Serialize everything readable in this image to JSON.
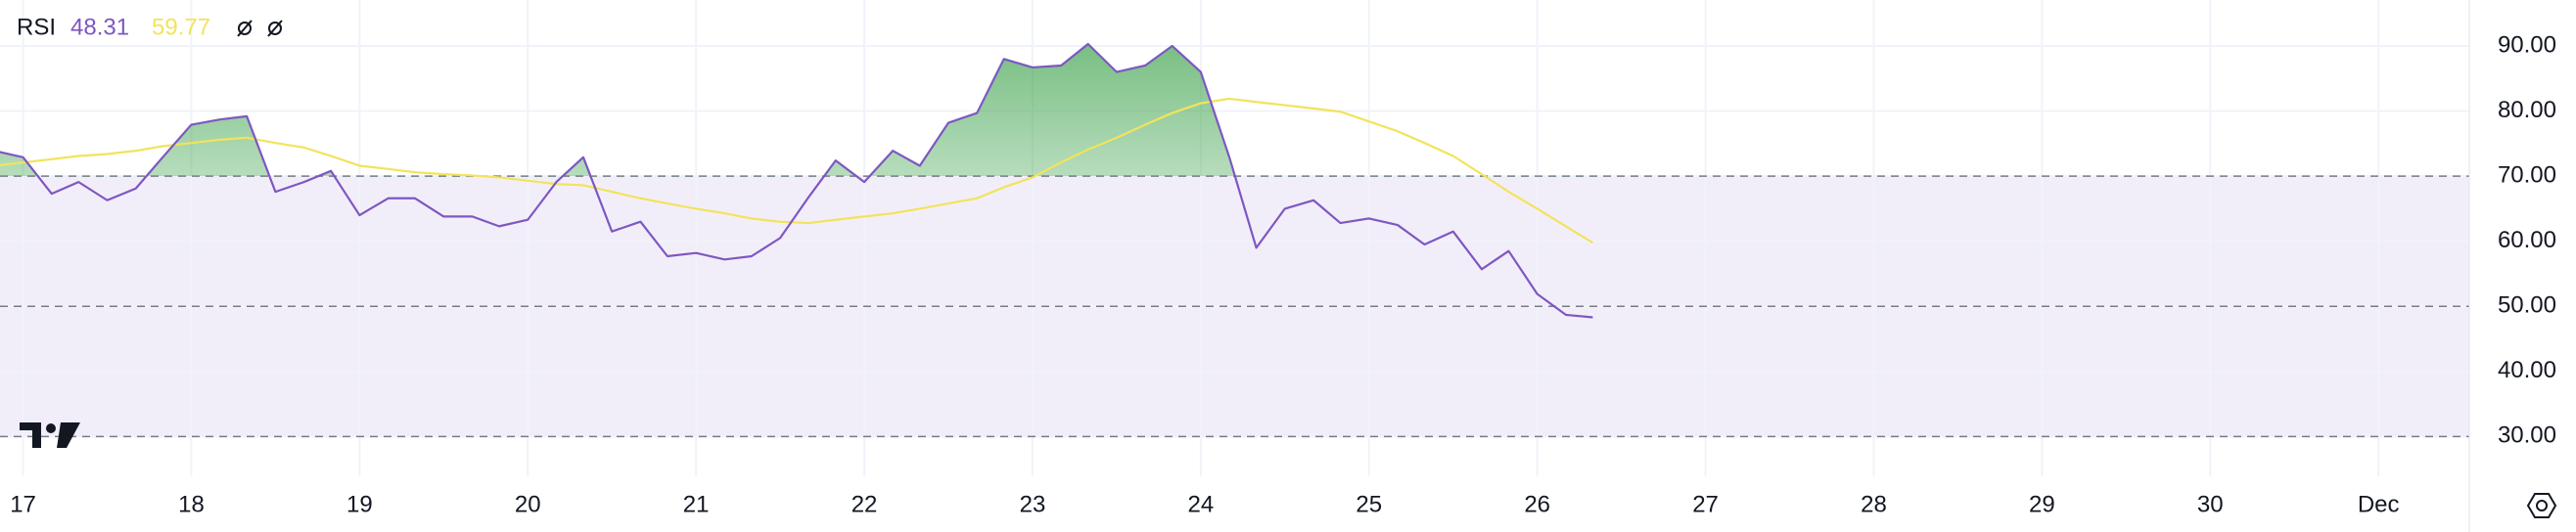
{
  "chart_data": {
    "type": "line",
    "title": "RSI",
    "x": [
      16.83,
      17,
      17.17,
      17.33,
      17.5,
      17.67,
      17.83,
      18,
      18.17,
      18.33,
      18.5,
      18.67,
      18.83,
      19,
      19.17,
      19.33,
      19.5,
      19.67,
      19.83,
      20,
      20.17,
      20.33,
      20.5,
      20.67,
      20.83,
      21,
      21.17,
      21.33,
      21.5,
      21.67,
      21.83,
      22,
      22.17,
      22.33,
      22.5,
      22.67,
      22.83,
      23,
      23.17,
      23.33,
      23.5,
      23.67,
      23.83,
      24,
      24.17,
      24.33,
      24.5,
      24.67,
      24.83,
      25,
      25.17,
      25.33,
      25.5,
      25.67,
      25.83,
      26,
      26.17,
      26.33
    ],
    "series": [
      {
        "color": "#7e57c2",
        "values": [
          73.9,
          72.9,
          67.3,
          69.1,
          66.3,
          68.1,
          72.9,
          77.9,
          78.7,
          79.2,
          67.6,
          69.1,
          70.8,
          64.0,
          66.6,
          66.6,
          63.8,
          63.8,
          62.3,
          63.3,
          69.1,
          72.9,
          61.5,
          63.0,
          57.7,
          58.2,
          57.2,
          57.7,
          60.5,
          66.8,
          72.4,
          69.1,
          73.9,
          71.6,
          78.2,
          79.7,
          88.0,
          86.7,
          87.0,
          90.3,
          86.0,
          87.0,
          90.0,
          86.0,
          72.9,
          59.0,
          65.0,
          66.3,
          62.8,
          63.5,
          62.5,
          59.5,
          61.5,
          55.7,
          58.5,
          51.9,
          48.7,
          48.31
        ]
      },
      {
        "color": "#f2e35c",
        "values": [
          71.6,
          72.1,
          72.6,
          73.1,
          73.4,
          73.9,
          74.6,
          75.1,
          75.6,
          75.9,
          75.1,
          74.4,
          73.1,
          71.6,
          71.1,
          70.6,
          70.3,
          70.1,
          69.8,
          69.3,
          68.8,
          68.6,
          67.6,
          66.6,
          65.8,
          65.0,
          64.3,
          63.5,
          63.0,
          62.8,
          63.3,
          63.8,
          64.3,
          65.0,
          65.8,
          66.6,
          68.3,
          69.8,
          72.1,
          74.1,
          75.9,
          77.9,
          79.7,
          81.2,
          81.9,
          81.4,
          80.9,
          80.4,
          79.9,
          78.4,
          76.9,
          75.1,
          73.1,
          70.3,
          67.6,
          65.0,
          62.3,
          59.77
        ]
      }
    ],
    "xlim": [
      16.863,
      31.54
    ],
    "xticks": [
      17,
      18,
      19,
      20,
      21,
      22,
      23,
      24,
      25,
      26,
      27,
      28,
      29,
      30,
      {
        "value": 31,
        "label": "Dec"
      }
    ],
    "ylim": [
      23.9,
      97.06
    ],
    "yticks": [
      {
        "value": 30,
        "label": "30.00"
      },
      {
        "value": 40,
        "label": "40.00"
      },
      {
        "value": 50,
        "label": "50.00"
      },
      {
        "value": 60,
        "label": "60.00"
      },
      {
        "value": 70,
        "label": "70.00"
      },
      {
        "value": 80,
        "label": "80.00"
      },
      {
        "value": 90,
        "label": "90.00"
      }
    ],
    "levels": [
      70,
      50,
      30
    ],
    "grid": true
  }
}
